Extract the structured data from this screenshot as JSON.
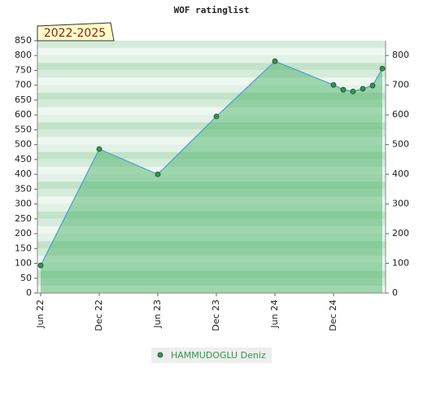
{
  "chart_data": {
    "type": "area",
    "title": "WOF ratinglist",
    "annotation": "2022-2025",
    "x": [
      "2022-06",
      "2022-12",
      "2023-06",
      "2023-12",
      "2024-06",
      "2024-12",
      "2025-01",
      "2025-02",
      "2025-03",
      "2025-04",
      "2025-05"
    ],
    "series": [
      {
        "name": "HAMMUDOGLU Deniz",
        "color": "#2e9a48",
        "values": [
          93,
          485,
          400,
          595,
          781,
          701,
          685,
          679,
          688,
          699,
          756
        ]
      }
    ],
    "xlim": [
      "2022-06",
      "2025-05"
    ],
    "xticks": [
      {
        "value": "2022-06",
        "label": "Jun 22"
      },
      {
        "value": "2022-12",
        "label": "Dec 22"
      },
      {
        "value": "2023-06",
        "label": "Jun 23"
      },
      {
        "value": "2023-12",
        "label": "Dec 23"
      },
      {
        "value": "2024-06",
        "label": "Jun 24"
      },
      {
        "value": "2024-12",
        "label": "Dec 24"
      }
    ],
    "ylim": [
      0,
      850
    ],
    "yticks": [
      0,
      50,
      100,
      150,
      200,
      250,
      300,
      350,
      400,
      450,
      500,
      550,
      600,
      650,
      700,
      750,
      800,
      850
    ],
    "y2lim": [
      0,
      850
    ],
    "y2ticks": [
      0,
      100,
      200,
      300,
      400,
      500,
      600,
      700,
      800
    ]
  }
}
